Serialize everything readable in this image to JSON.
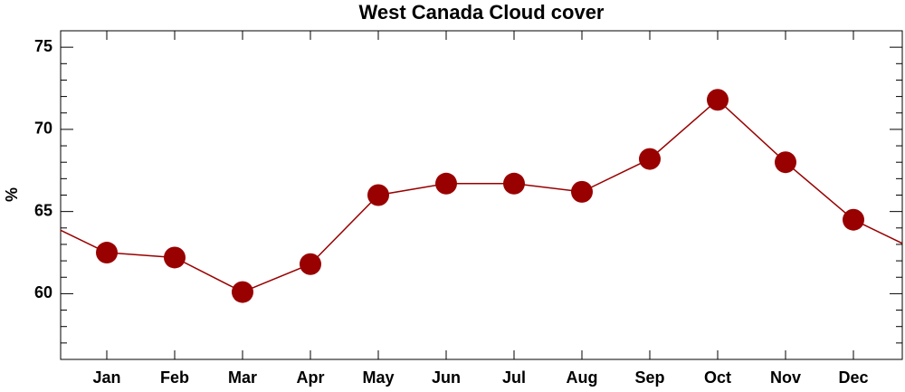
{
  "chart_data": {
    "type": "line",
    "title": "West Canada Cloud cover",
    "y_label": "%",
    "categories": [
      "Jan",
      "Feb",
      "Mar",
      "Apr",
      "May",
      "Jun",
      "Jul",
      "Aug",
      "Sep",
      "Oct",
      "Nov",
      "Dec"
    ],
    "series": [
      {
        "name": "Cloud cover",
        "color": "#990000",
        "values": [
          62.5,
          62.2,
          60.1,
          61.8,
          66.0,
          66.7,
          66.7,
          66.2,
          68.2,
          71.8,
          68.0,
          64.5
        ]
      }
    ],
    "ylim": [
      56,
      76
    ],
    "yticks": [
      60,
      65,
      70,
      75
    ],
    "yminorticks": [
      56,
      57,
      58,
      59,
      61,
      62,
      63,
      64,
      66,
      67,
      68,
      69,
      71,
      72,
      73,
      74,
      76
    ],
    "grid": false,
    "legend": false,
    "cyclic": true
  }
}
